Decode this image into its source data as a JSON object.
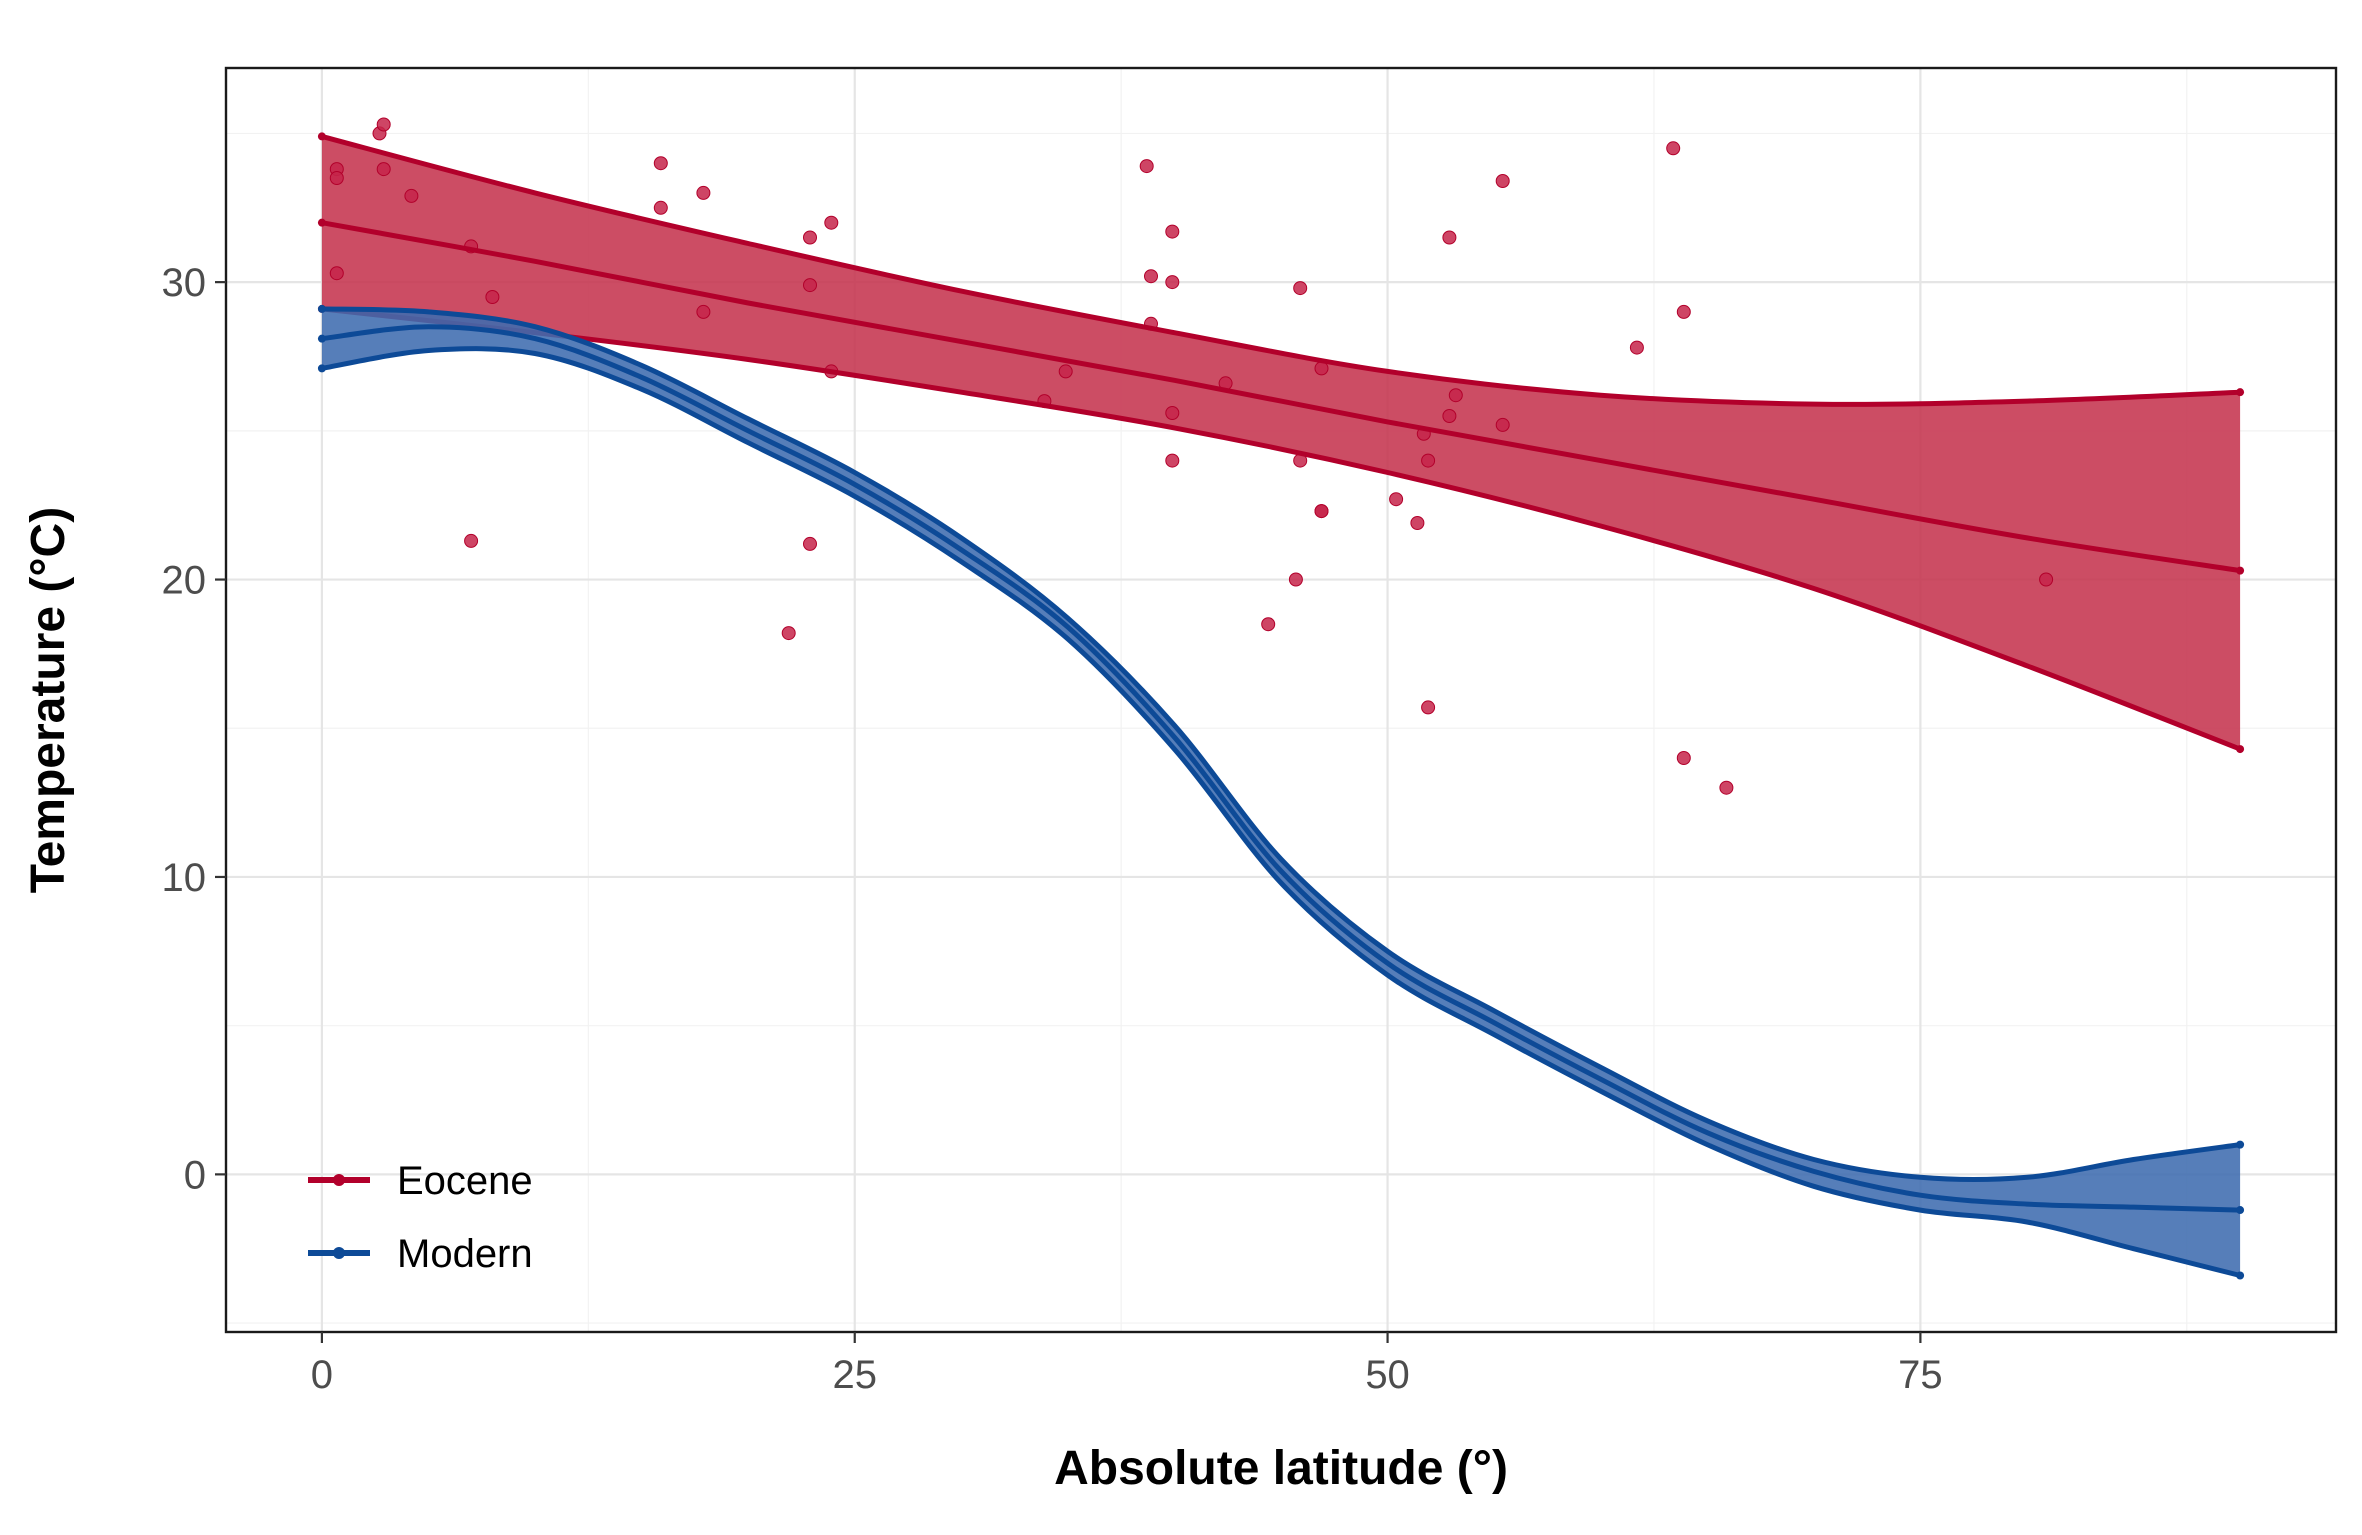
{
  "chart_data": {
    "type": "line",
    "title": "",
    "xlabel": "Absolute latitude (°)",
    "ylabel": "Temperature (°C)",
    "xlim": [
      -4.5,
      94.5
    ],
    "ylim": [
      -5.3,
      37.2
    ],
    "x_ticks": [
      0,
      25,
      50,
      75
    ],
    "y_ticks": [
      0,
      10,
      20,
      30
    ],
    "grid": true,
    "legend_position": "bottom-left",
    "series": [
      {
        "name": "Eocene",
        "color": "#b2002b",
        "fill": "#c5344f",
        "fit": [
          [
            0,
            32.0
          ],
          [
            10,
            30.7
          ],
          [
            20,
            29.3
          ],
          [
            30,
            28.0
          ],
          [
            40,
            26.7
          ],
          [
            50,
            25.3
          ],
          [
            60,
            24.0
          ],
          [
            70,
            22.7
          ],
          [
            80,
            21.4
          ],
          [
            90,
            20.3
          ]
        ],
        "upper": [
          [
            0,
            34.9
          ],
          [
            10,
            33.0
          ],
          [
            20,
            31.3
          ],
          [
            30,
            29.7
          ],
          [
            40,
            28.3
          ],
          [
            50,
            27.0
          ],
          [
            60,
            26.2
          ],
          [
            70,
            25.9
          ],
          [
            80,
            26.0
          ],
          [
            90,
            26.3
          ]
        ],
        "lower": [
          [
            0,
            29.1
          ],
          [
            10,
            28.3
          ],
          [
            20,
            27.4
          ],
          [
            30,
            26.3
          ],
          [
            40,
            25.1
          ],
          [
            50,
            23.6
          ],
          [
            60,
            21.8
          ],
          [
            70,
            19.7
          ],
          [
            80,
            17.1
          ],
          [
            90,
            14.3
          ]
        ],
        "points": [
          [
            0.7,
            33.8
          ],
          [
            0.7,
            33.5
          ],
          [
            0.7,
            30.3
          ],
          [
            2.7,
            35.0
          ],
          [
            2.9,
            35.3
          ],
          [
            2.9,
            33.8
          ],
          [
            4.2,
            32.9
          ],
          [
            7.0,
            31.2
          ],
          [
            7.0,
            21.3
          ],
          [
            8.0,
            29.5
          ],
          [
            15.9,
            34.0
          ],
          [
            15.9,
            32.5
          ],
          [
            17.9,
            33.0
          ],
          [
            17.9,
            29.0
          ],
          [
            21.9,
            18.2
          ],
          [
            22.9,
            31.5
          ],
          [
            22.9,
            29.9
          ],
          [
            22.9,
            21.2
          ],
          [
            23.9,
            32.0
          ],
          [
            23.9,
            27.0
          ],
          [
            33.9,
            26.0
          ],
          [
            34.9,
            27.0
          ],
          [
            38.7,
            33.9
          ],
          [
            38.9,
            30.2
          ],
          [
            38.9,
            28.6
          ],
          [
            39.9,
            31.7
          ],
          [
            39.9,
            30.0
          ],
          [
            39.9,
            25.6
          ],
          [
            39.9,
            24.0
          ],
          [
            42.4,
            26.6
          ],
          [
            44.4,
            18.5
          ],
          [
            45.9,
            29.8
          ],
          [
            45.9,
            24.0
          ],
          [
            45.7,
            20.0
          ],
          [
            46.9,
            27.1
          ],
          [
            46.9,
            22.3
          ],
          [
            46.9,
            22.3
          ],
          [
            50.4,
            22.7
          ],
          [
            51.4,
            21.9
          ],
          [
            51.7,
            24.9
          ],
          [
            51.9,
            24.0
          ],
          [
            51.9,
            15.7
          ],
          [
            52.9,
            31.5
          ],
          [
            52.9,
            25.5
          ],
          [
            53.2,
            26.2
          ],
          [
            55.4,
            33.4
          ],
          [
            55.4,
            25.2
          ],
          [
            61.7,
            27.8
          ],
          [
            63.4,
            34.5
          ],
          [
            63.9,
            29.0
          ],
          [
            63.9,
            14.0
          ],
          [
            65.9,
            13.0
          ],
          [
            80.9,
            20.0
          ]
        ]
      },
      {
        "name": "Modern",
        "color": "#0d4a97",
        "fill": "#3f6caf",
        "fit": [
          [
            0,
            28.1
          ],
          [
            5,
            28.5
          ],
          [
            10,
            28.1
          ],
          [
            15,
            26.8
          ],
          [
            20,
            25.0
          ],
          [
            25,
            23.2
          ],
          [
            30,
            21.0
          ],
          [
            35,
            18.4
          ],
          [
            40,
            14.7
          ],
          [
            45,
            10.2
          ],
          [
            50,
            7.1
          ],
          [
            55,
            5.1
          ],
          [
            60,
            3.2
          ],
          [
            65,
            1.4
          ],
          [
            70,
            0.1
          ],
          [
            75,
            -0.7
          ],
          [
            80,
            -1.0
          ],
          [
            85,
            -1.1
          ],
          [
            90,
            -1.2
          ]
        ],
        "upper": [
          [
            0,
            29.1
          ],
          [
            5,
            29.0
          ],
          [
            10,
            28.5
          ],
          [
            15,
            27.2
          ],
          [
            20,
            25.4
          ],
          [
            25,
            23.6
          ],
          [
            30,
            21.4
          ],
          [
            35,
            18.7
          ],
          [
            40,
            15.1
          ],
          [
            45,
            10.6
          ],
          [
            50,
            7.5
          ],
          [
            55,
            5.5
          ],
          [
            60,
            3.6
          ],
          [
            65,
            1.8
          ],
          [
            70,
            0.5
          ],
          [
            75,
            -0.1
          ],
          [
            80,
            -0.1
          ],
          [
            85,
            0.5
          ],
          [
            90,
            1.0
          ]
        ],
        "lower": [
          [
            0,
            27.1
          ],
          [
            5,
            27.7
          ],
          [
            10,
            27.6
          ],
          [
            15,
            26.4
          ],
          [
            20,
            24.6
          ],
          [
            25,
            22.8
          ],
          [
            30,
            20.6
          ],
          [
            35,
            18.0
          ],
          [
            40,
            14.3
          ],
          [
            45,
            9.8
          ],
          [
            50,
            6.7
          ],
          [
            55,
            4.7
          ],
          [
            60,
            2.8
          ],
          [
            65,
            1.0
          ],
          [
            70,
            -0.4
          ],
          [
            75,
            -1.2
          ],
          [
            80,
            -1.6
          ],
          [
            85,
            -2.5
          ],
          [
            90,
            -3.4
          ]
        ]
      }
    ]
  }
}
